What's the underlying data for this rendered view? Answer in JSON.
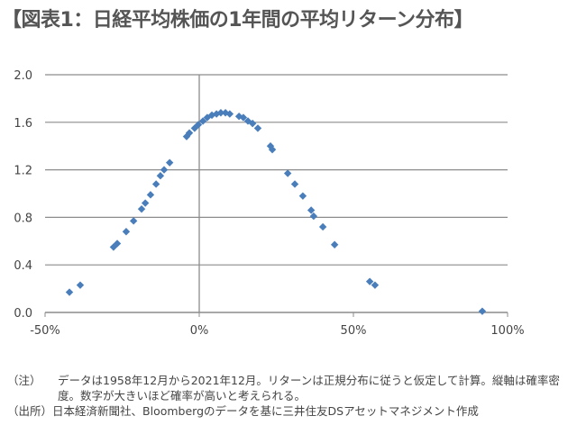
{
  "title": "【図表1：日経平均株価の1年間の平均リターン分布】",
  "chart_data": {
    "type": "scatter",
    "title": "日経平均株価の1年間の平均リターン分布",
    "xlabel": "",
    "ylabel": "",
    "xlim": [
      -50,
      100
    ],
    "ylim": [
      0,
      2.0
    ],
    "x_ticks": [
      -50,
      0,
      50,
      100
    ],
    "x_tick_labels": [
      "-50%",
      "0%",
      "50%",
      "100%"
    ],
    "y_ticks": [
      0,
      0.4,
      0.8,
      1.2,
      1.6,
      2.0
    ],
    "y_tick_labels": [
      "0.0",
      "0.4",
      "0.8",
      "1.2",
      "1.6",
      "2.0"
    ],
    "grid": "horizontal",
    "color": "#4a7ebb",
    "points": [
      [
        -42.1,
        0.17
      ],
      [
        -38.6,
        0.23
      ],
      [
        -27.8,
        0.55
      ],
      [
        -26.6,
        0.58
      ],
      [
        -23.7,
        0.68
      ],
      [
        -21.3,
        0.77
      ],
      [
        -18.7,
        0.87
      ],
      [
        -17.5,
        0.92
      ],
      [
        -15.8,
        0.99
      ],
      [
        -14.0,
        1.08
      ],
      [
        -12.6,
        1.15
      ],
      [
        -11.4,
        1.2
      ],
      [
        -9.6,
        1.26
      ],
      [
        -4.1,
        1.48
      ],
      [
        -3.2,
        1.51
      ],
      [
        -1.5,
        1.55
      ],
      [
        -0.3,
        1.58
      ],
      [
        1.2,
        1.61
      ],
      [
        2.6,
        1.64
      ],
      [
        4.1,
        1.66
      ],
      [
        5.6,
        1.67
      ],
      [
        7.0,
        1.68
      ],
      [
        8.5,
        1.68
      ],
      [
        9.9,
        1.67
      ],
      [
        12.9,
        1.65
      ],
      [
        14.3,
        1.64
      ],
      [
        15.8,
        1.61
      ],
      [
        17.3,
        1.59
      ],
      [
        19.0,
        1.55
      ],
      [
        23.1,
        1.4
      ],
      [
        23.7,
        1.37
      ],
      [
        28.7,
        1.17
      ],
      [
        31.0,
        1.08
      ],
      [
        33.6,
        0.98
      ],
      [
        36.3,
        0.86
      ],
      [
        37.1,
        0.81
      ],
      [
        40.1,
        0.72
      ],
      [
        43.9,
        0.57
      ],
      [
        55.3,
        0.26
      ],
      [
        57.0,
        0.23
      ],
      [
        91.8,
        0.01
      ]
    ]
  },
  "notes": {
    "note_label": "（注）",
    "note_text": "データは1958年12月から2021年12月。リターンは正規分布に従うと仮定して計算。縦軸は確率密度。数字が大きいほど確率が高いと考えられる。",
    "source_label": "（出所）",
    "source_text": "日本経済新聞社、Bloombergのデータを基に三井住友DSアセットマネジメント作成"
  }
}
